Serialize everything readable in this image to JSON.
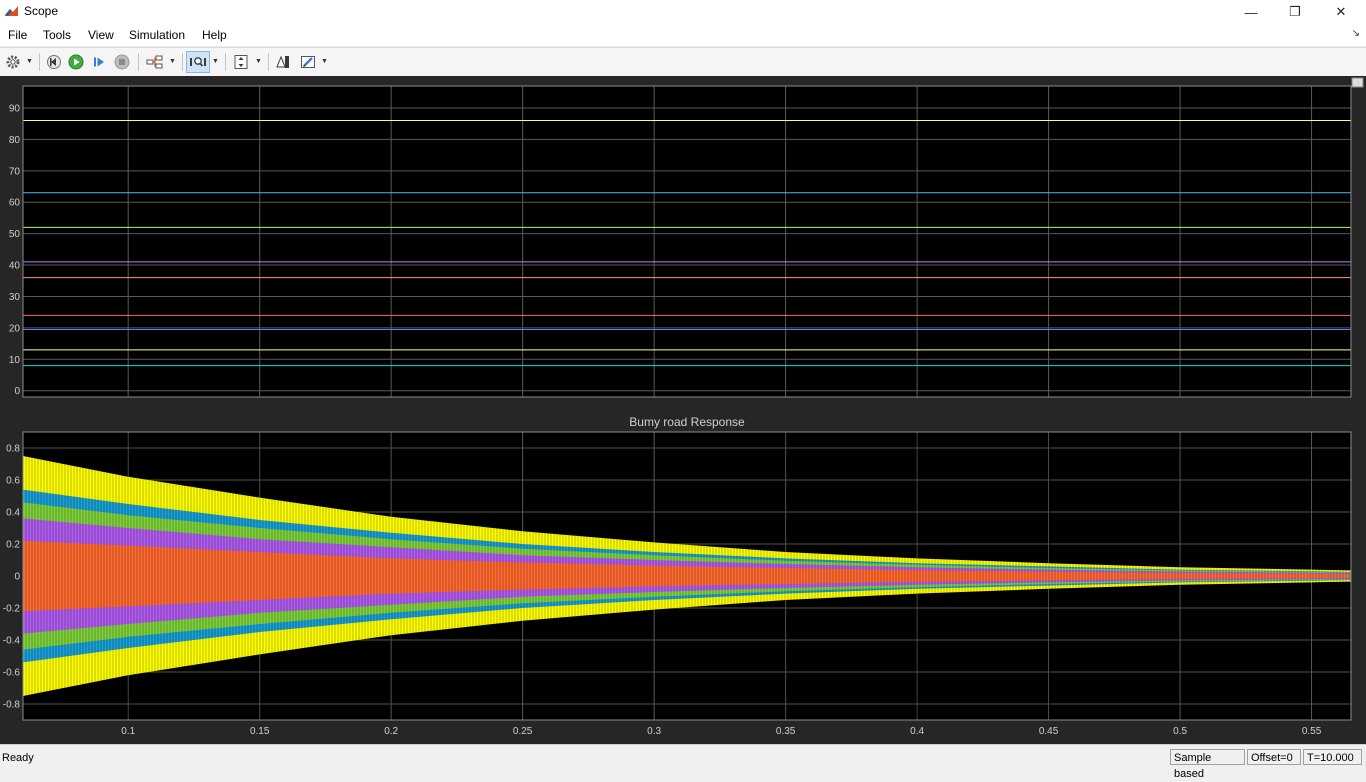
{
  "window": {
    "title": "Scope",
    "minimize": "—",
    "restore": "❐",
    "close": "✕"
  },
  "menu": {
    "items": [
      "File",
      "Tools",
      "View",
      "Simulation",
      "Help"
    ]
  },
  "toolbar": {
    "icons": [
      "gear-icon",
      "step-back-icon",
      "run-icon",
      "step-forward-icon",
      "stop-icon",
      "signal-selector-icon",
      "zoom-icon",
      "scale-axes-icon",
      "trigger-icon",
      "highlight-icon"
    ]
  },
  "status": {
    "ready": "Ready",
    "sample": "Sample based",
    "offset": "Offset=0",
    "time": "T=10.000"
  },
  "colors": {
    "plot_bg": "#000000",
    "panel_bg": "#262626",
    "grid": "#5a5a5a",
    "yellow": "#ffff00",
    "blue": "#1a9fd6",
    "green": "#7fd23a",
    "purple": "#b05cf0",
    "orange": "#ff6a30"
  },
  "chart_data": [
    {
      "type": "line",
      "title": "",
      "xlim": [
        0.06,
        0.565
      ],
      "ylim": [
        -2,
        97
      ],
      "x_ticks": [
        0.1,
        0.15,
        0.2,
        0.25,
        0.3,
        0.35,
        0.4,
        0.45,
        0.5,
        0.55
      ],
      "y_ticks": [
        0,
        10,
        20,
        30,
        40,
        50,
        60,
        70,
        80,
        90
      ],
      "y_tick_labels": [
        "0",
        "10",
        "20",
        "30",
        "40",
        "50",
        "60",
        "70",
        "80",
        "90"
      ],
      "x_tick_labels": [],
      "grid": true,
      "series": [
        {
          "color": "#ffff66",
          "y": 86
        },
        {
          "color": "#4db8ff",
          "y": 63
        },
        {
          "color": "#a6ff4d",
          "y": 52
        },
        {
          "color": "#c77dff",
          "y": 41
        },
        {
          "color": "#ff9966",
          "y": 36
        },
        {
          "color": "#ff6666",
          "y": 24
        },
        {
          "color": "#4d88ff",
          "y": 19.5
        },
        {
          "color": "#ffff99",
          "y": 13
        },
        {
          "color": "#00e5e5",
          "y": 8
        }
      ]
    },
    {
      "type": "area",
      "title": "Bumy road Response",
      "xlim": [
        0.06,
        0.565
      ],
      "ylim": [
        -0.9,
        0.9
      ],
      "x_ticks": [
        0.1,
        0.15,
        0.2,
        0.25,
        0.3,
        0.35,
        0.4,
        0.45,
        0.5,
        0.55
      ],
      "x_tick_labels": [
        "0.1",
        "0.15",
        "0.2",
        "0.25",
        "0.3",
        "0.35",
        "0.4",
        "0.45",
        "0.5",
        "0.55"
      ],
      "y_ticks": [
        -0.8,
        -0.6,
        -0.4,
        -0.2,
        0,
        0.2,
        0.4,
        0.6,
        0.8
      ],
      "y_tick_labels": [
        "-0.8",
        "-0.6",
        "-0.4",
        "-0.2",
        "0",
        "0.2",
        "0.4",
        "0.6",
        "0.8"
      ],
      "grid": true,
      "envelope_x": [
        0.06,
        0.1,
        0.15,
        0.2,
        0.25,
        0.3,
        0.35,
        0.4,
        0.45,
        0.5,
        0.55,
        0.565
      ],
      "series": [
        {
          "color": "#ffff00",
          "amplitude": [
            0.75,
            0.62,
            0.49,
            0.37,
            0.28,
            0.21,
            0.15,
            0.11,
            0.08,
            0.055,
            0.04,
            0.035
          ]
        },
        {
          "color": "#1a9fd6",
          "amplitude": [
            0.54,
            0.45,
            0.35,
            0.27,
            0.2,
            0.15,
            0.11,
            0.08,
            0.06,
            0.04,
            0.03,
            0.025
          ]
        },
        {
          "color": "#7fd23a",
          "amplitude": [
            0.46,
            0.38,
            0.3,
            0.23,
            0.17,
            0.13,
            0.095,
            0.07,
            0.05,
            0.035,
            0.025,
            0.02
          ]
        },
        {
          "color": "#b05cf0",
          "amplitude": [
            0.36,
            0.3,
            0.23,
            0.18,
            0.13,
            0.1,
            0.075,
            0.055,
            0.04,
            0.028,
            0.02,
            0.018
          ]
        },
        {
          "color": "#ff6a30",
          "amplitude": [
            0.22,
            0.19,
            0.15,
            0.11,
            0.085,
            0.065,
            0.05,
            0.036,
            0.026,
            0.018,
            0.013,
            0.011
          ]
        }
      ]
    }
  ]
}
